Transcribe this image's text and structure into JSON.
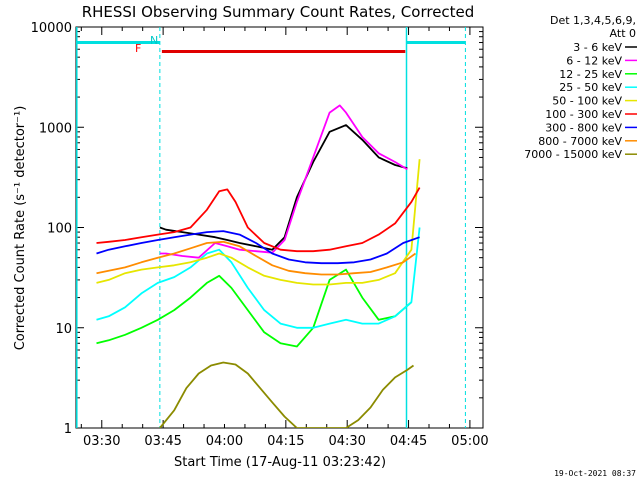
{
  "chart_data": {
    "type": "line",
    "title": "RHESSI Observing Summary Count Rates, Corrected",
    "xlabel": "Start Time (17-Aug-11 03:23:42)",
    "ylabel": "Corrected Count Rate (s⁻¹ detector⁻¹)",
    "footer_date": "19-Oct-2021 08:37",
    "y_scale": "log",
    "ylim": [
      1,
      10000
    ],
    "xlim_minutes": [
      0,
      99.5
    ],
    "x_ticks": [
      "03:30",
      "03:45",
      "04:00",
      "04:15",
      "04:30",
      "04:45",
      "05:00"
    ],
    "x_tick_minutes": [
      6.3,
      21.3,
      36.3,
      51.3,
      66.3,
      81.3,
      96.3
    ],
    "y_ticks": [
      "1",
      "10",
      "100",
      "1000",
      "10000"
    ],
    "y_tick_values": [
      1,
      10,
      100,
      1000,
      10000
    ],
    "legend": {
      "header": [
        "Det 1,3,4,5,6,9,",
        "Att 0"
      ],
      "entries": [
        {
          "label": "3 - 6 keV",
          "color": "#000000"
        },
        {
          "label": "6 - 12 keV",
          "color": "#ff00ff"
        },
        {
          "label": "12 - 25 keV",
          "color": "#00ff00"
        },
        {
          "label": "25 - 50 keV",
          "color": "#00ffff"
        },
        {
          "label": "50 - 100 keV",
          "color": "#e6e600"
        },
        {
          "label": "100 - 300 keV",
          "color": "#ff0000"
        },
        {
          "label": "300 - 800 keV",
          "color": "#0000ff"
        },
        {
          "label": "800 - 7000 keV",
          "color": "#ff8c00"
        },
        {
          "label": "7000 - 15000 keV",
          "color": "#8b8b00"
        }
      ]
    },
    "annotations": {
      "night_label": "N",
      "flare_label": "F"
    },
    "series": [
      {
        "name": "3 - 6 keV",
        "color": "#000000",
        "x": [
          20.5,
          22,
          26,
          30,
          34,
          37,
          40,
          44,
          48,
          51,
          54,
          58,
          62,
          66,
          70,
          74,
          78,
          81
        ],
        "y": [
          100,
          95,
          90,
          85,
          80,
          75,
          70,
          65,
          60,
          80,
          200,
          450,
          900,
          1050,
          750,
          500,
          420,
          390
        ]
      },
      {
        "name": "6 - 12 keV",
        "color": "#ff00ff",
        "x": [
          20.5,
          22,
          26,
          30,
          34,
          37,
          40,
          44,
          48,
          51,
          54,
          58,
          62,
          64.5,
          66,
          70,
          74,
          78,
          81
        ],
        "y": [
          55,
          55,
          52,
          50,
          70,
          65,
          60,
          58,
          56,
          75,
          180,
          500,
          1400,
          1650,
          1400,
          800,
          550,
          450,
          380
        ]
      },
      {
        "name": "12 - 25 keV",
        "color": "#00ff00",
        "x": [
          5,
          8,
          12,
          16,
          20,
          24,
          28,
          32,
          35,
          38,
          42,
          46,
          50,
          54,
          58,
          62,
          66,
          70,
          74,
          78,
          82
        ],
        "y": [
          7,
          7.5,
          8.5,
          10,
          12,
          15,
          20,
          28,
          33,
          25,
          15,
          9,
          7,
          6.5,
          10,
          30,
          38,
          20,
          12,
          13,
          18
        ]
      },
      {
        "name": "25 - 50 keV",
        "color": "#00ffff",
        "x": [
          5,
          8,
          12,
          16,
          20,
          24,
          28,
          32,
          35,
          38,
          42,
          46,
          50,
          54,
          58,
          62,
          66,
          70,
          74,
          78,
          82,
          84
        ],
        "y": [
          12,
          13,
          16,
          22,
          28,
          32,
          40,
          55,
          60,
          45,
          25,
          15,
          11,
          10,
          10,
          11,
          12,
          11,
          11,
          13,
          18,
          100
        ]
      },
      {
        "name": "50 - 100 keV",
        "color": "#e6e600",
        "x": [
          5,
          8,
          12,
          16,
          20,
          24,
          28,
          32,
          35,
          38,
          42,
          46,
          50,
          54,
          58,
          62,
          66,
          70,
          74,
          78,
          82,
          84
        ],
        "y": [
          28,
          30,
          35,
          38,
          40,
          42,
          45,
          50,
          55,
          50,
          40,
          33,
          30,
          28,
          27,
          27,
          28,
          28,
          30,
          35,
          60,
          480
        ]
      },
      {
        "name": "100 - 300 keV",
        "color": "#ff0000",
        "x": [
          5,
          8,
          12,
          16,
          20,
          24,
          28,
          32,
          35,
          37,
          39,
          42,
          46,
          50,
          54,
          58,
          62,
          66,
          70,
          74,
          78,
          82,
          84
        ],
        "y": [
          70,
          72,
          75,
          80,
          85,
          90,
          100,
          150,
          230,
          240,
          180,
          100,
          70,
          60,
          58,
          58,
          60,
          65,
          70,
          85,
          110,
          180,
          250
        ]
      },
      {
        "name": "300 - 800 keV",
        "color": "#0000ff",
        "x": [
          5,
          8,
          12,
          16,
          20,
          24,
          28,
          32,
          36,
          40,
          44,
          48,
          52,
          56,
          60,
          64,
          68,
          72,
          76,
          80,
          84
        ],
        "y": [
          55,
          60,
          65,
          70,
          75,
          80,
          85,
          90,
          92,
          85,
          70,
          55,
          48,
          45,
          44,
          44,
          45,
          48,
          55,
          70,
          80
        ]
      },
      {
        "name": "800 - 7000 keV",
        "color": "#ff8c00",
        "x": [
          5,
          8,
          12,
          16,
          20,
          24,
          28,
          32,
          36,
          40,
          44,
          48,
          52,
          56,
          60,
          64,
          68,
          72,
          76,
          80,
          83
        ],
        "y": [
          35,
          37,
          40,
          45,
          50,
          55,
          62,
          70,
          72,
          65,
          52,
          42,
          37,
          35,
          34,
          34,
          35,
          36,
          40,
          45,
          55
        ]
      },
      {
        "name": "7000 - 15000 keV",
        "color": "#8b8b00",
        "x": [
          20.5,
          24,
          27,
          30,
          33,
          36,
          39,
          42,
          45,
          48,
          51,
          54,
          57,
          60,
          63,
          66,
          69,
          72,
          75,
          78,
          81,
          82.5
        ],
        "y": [
          1,
          1.5,
          2.5,
          3.5,
          4.2,
          4.5,
          4.3,
          3.5,
          2.5,
          1.8,
          1.3,
          1,
          1,
          1,
          1,
          1,
          1.2,
          1.6,
          2.4,
          3.2,
          3.8,
          4.2
        ]
      }
    ],
    "eclipse_segments": [
      {
        "x_start": 0,
        "x_end": 20.5,
        "y": 7000
      },
      {
        "x_start": 80.8,
        "x_end": 95.2,
        "y": 7000
      }
    ],
    "flare_segment": {
      "x_start": 21,
      "x_end": 80.5,
      "y": 5700
    },
    "night_lines_minutes": [
      20.5,
      95.2
    ],
    "day_lines_minutes": [
      0.2,
      80.8
    ]
  }
}
